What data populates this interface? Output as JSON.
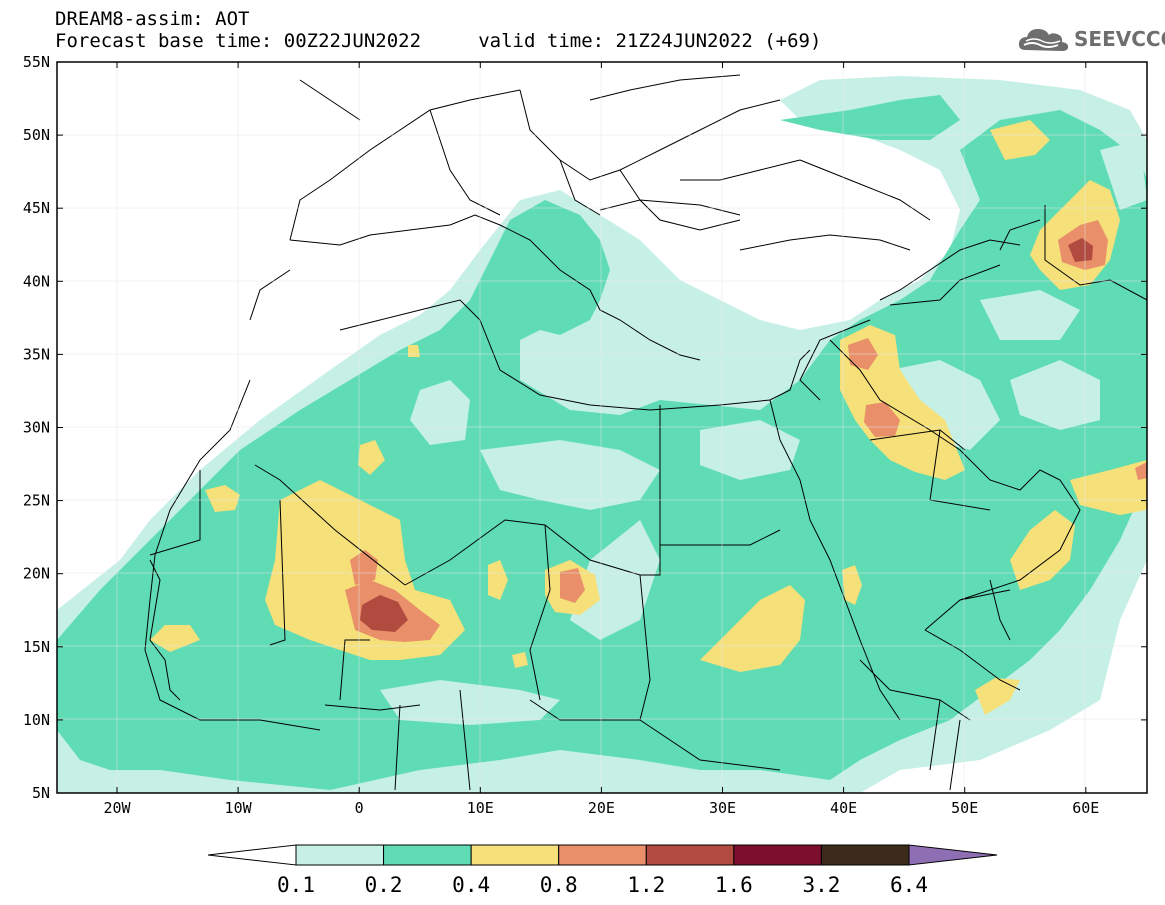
{
  "header": {
    "title_line1": "DREAM8-assim: AOT",
    "title_line2": "Forecast base time: 00Z22JUN2022     valid time: 21Z24JUN2022 (+69)"
  },
  "logo": {
    "text": "SEEVCCC",
    "icon": "cloud-icon"
  },
  "axes": {
    "lat_labels": [
      "55N",
      "50N",
      "45N",
      "40N",
      "35N",
      "30N",
      "25N",
      "20N",
      "15N",
      "10N",
      "5N"
    ],
    "lon_labels": [
      "20W",
      "10W",
      "0",
      "10E",
      "20E",
      "30E",
      "40E",
      "50E",
      "60E"
    ]
  },
  "colorbar": {
    "labels": [
      "0.1",
      "0.2",
      "0.4",
      "0.8",
      "1.2",
      "1.6",
      "3.2",
      "6.4"
    ],
    "colors": [
      "#c6f0e6",
      "#5fdcb4",
      "#f5e07a",
      "#e9906a",
      "#b14a3f",
      "#7d0f2e",
      "#3c2a1a",
      "#8f6fb3"
    ]
  },
  "map": {
    "variable": "AOT",
    "land_background": "#ffffff",
    "border_color": "#000000"
  }
}
